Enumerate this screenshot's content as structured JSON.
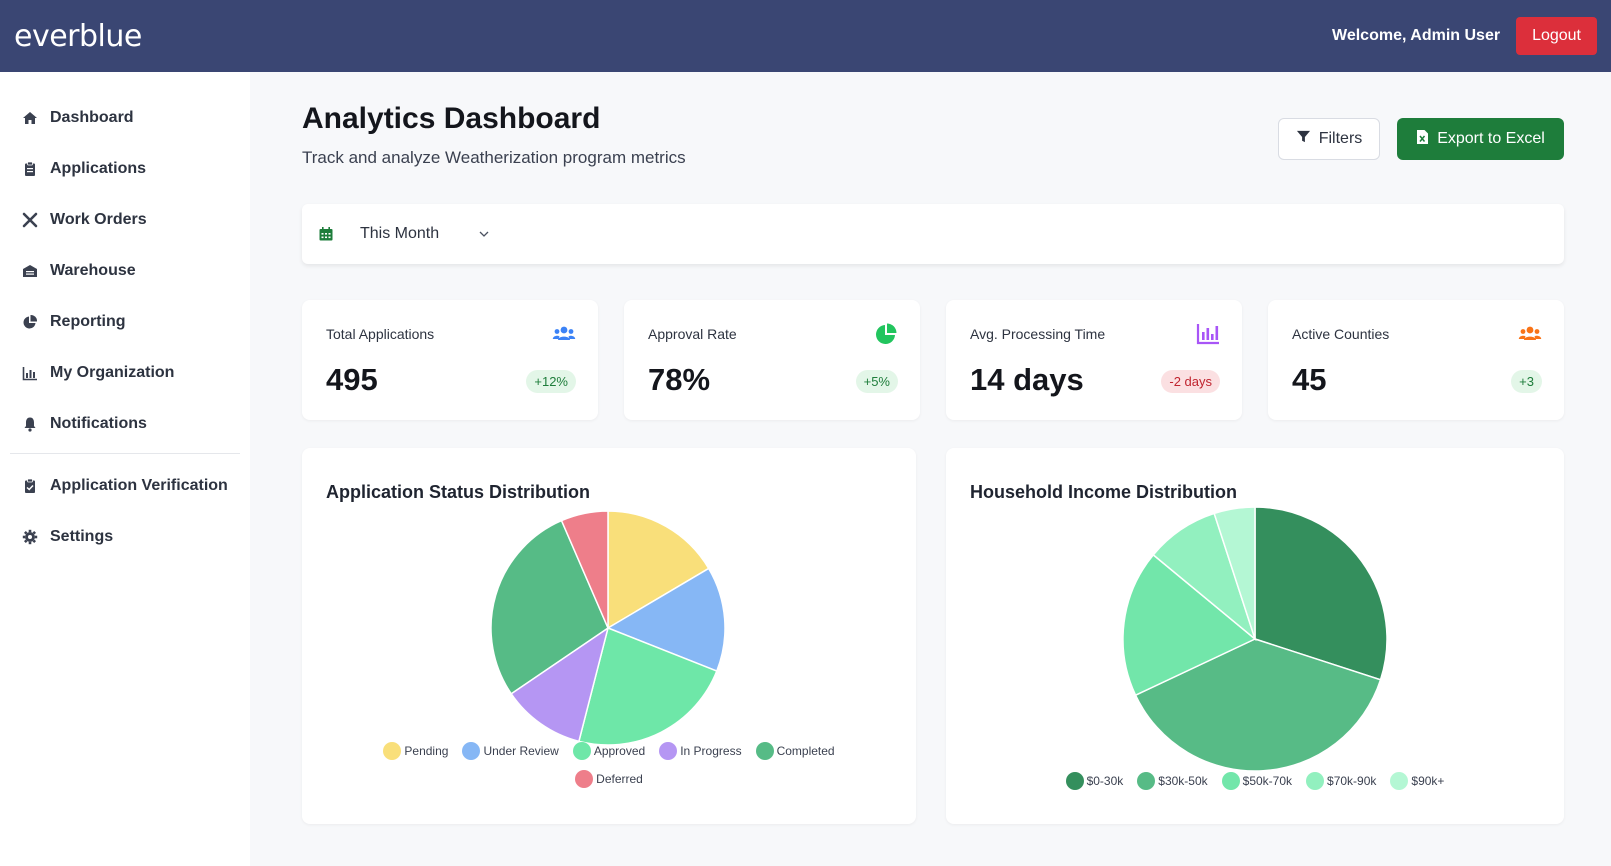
{
  "header": {
    "brand": "everblue",
    "welcome": "Welcome, Admin User",
    "logout_label": "Logout",
    "bg_color": "#3a4673"
  },
  "sidebar": {
    "items": [
      {
        "label": "Dashboard",
        "icon": "home-icon"
      },
      {
        "label": "Applications",
        "icon": "clipboard-icon"
      },
      {
        "label": "Work Orders",
        "icon": "tools-icon"
      },
      {
        "label": "Warehouse",
        "icon": "warehouse-icon"
      },
      {
        "label": "Reporting",
        "icon": "chart-pie-icon"
      },
      {
        "label": "My Organization",
        "icon": "chart-bar-icon"
      },
      {
        "label": "Notifications",
        "icon": "bell-icon"
      }
    ],
    "secondary_items": [
      {
        "label": "Application Verification",
        "icon": "clipboard-check-icon"
      },
      {
        "label": "Settings",
        "icon": "gear-icon"
      }
    ]
  },
  "page": {
    "title": "Analytics Dashboard",
    "subtitle": "Track and analyze Weatherization program metrics",
    "filters_label": "Filters",
    "export_label": "Export to Excel",
    "date_range": "This Month"
  },
  "kpis": [
    {
      "label": "Total Applications",
      "value": "495",
      "change": "+12%",
      "trend": "positive",
      "icon": "users-icon",
      "icon_color": "#3b82f6"
    },
    {
      "label": "Approval Rate",
      "value": "78%",
      "change": "+5%",
      "trend": "positive",
      "icon": "chart-pie-icon",
      "icon_color": "#22c55e"
    },
    {
      "label": "Avg. Processing Time",
      "value": "14 days",
      "change": "-2 days",
      "trend": "negative",
      "icon": "chart-bar-icon",
      "icon_color": "#a855f7"
    },
    {
      "label": "Active Counties",
      "value": "45",
      "change": "+3",
      "trend": "positive",
      "icon": "users-icon",
      "icon_color": "#f97316"
    }
  ],
  "chart_data": [
    {
      "type": "pie",
      "title": "Application Status Distribution",
      "categories": [
        "Pending",
        "Under Review",
        "Approved",
        "In Progress",
        "Completed",
        "Deferred"
      ],
      "values": [
        16.5,
        14.5,
        23,
        11.5,
        28,
        6.5
      ],
      "colors": [
        "#f9df7a",
        "#86b7f5",
        "#6ee7a8",
        "#b596f3",
        "#56bb86",
        "#ee7e8a"
      ],
      "legend": "bottom"
    },
    {
      "type": "pie",
      "title": "Household Income Distribution",
      "categories": [
        "$0-30k",
        "$30k-50k",
        "$50k-70k",
        "$70k-90k",
        "$90k+"
      ],
      "values": [
        30,
        38,
        18,
        9,
        5
      ],
      "colors": [
        "#348f5d",
        "#57bb86",
        "#72e6aa",
        "#92f0bf",
        "#b4f7d4"
      ],
      "legend": "bottom"
    }
  ]
}
